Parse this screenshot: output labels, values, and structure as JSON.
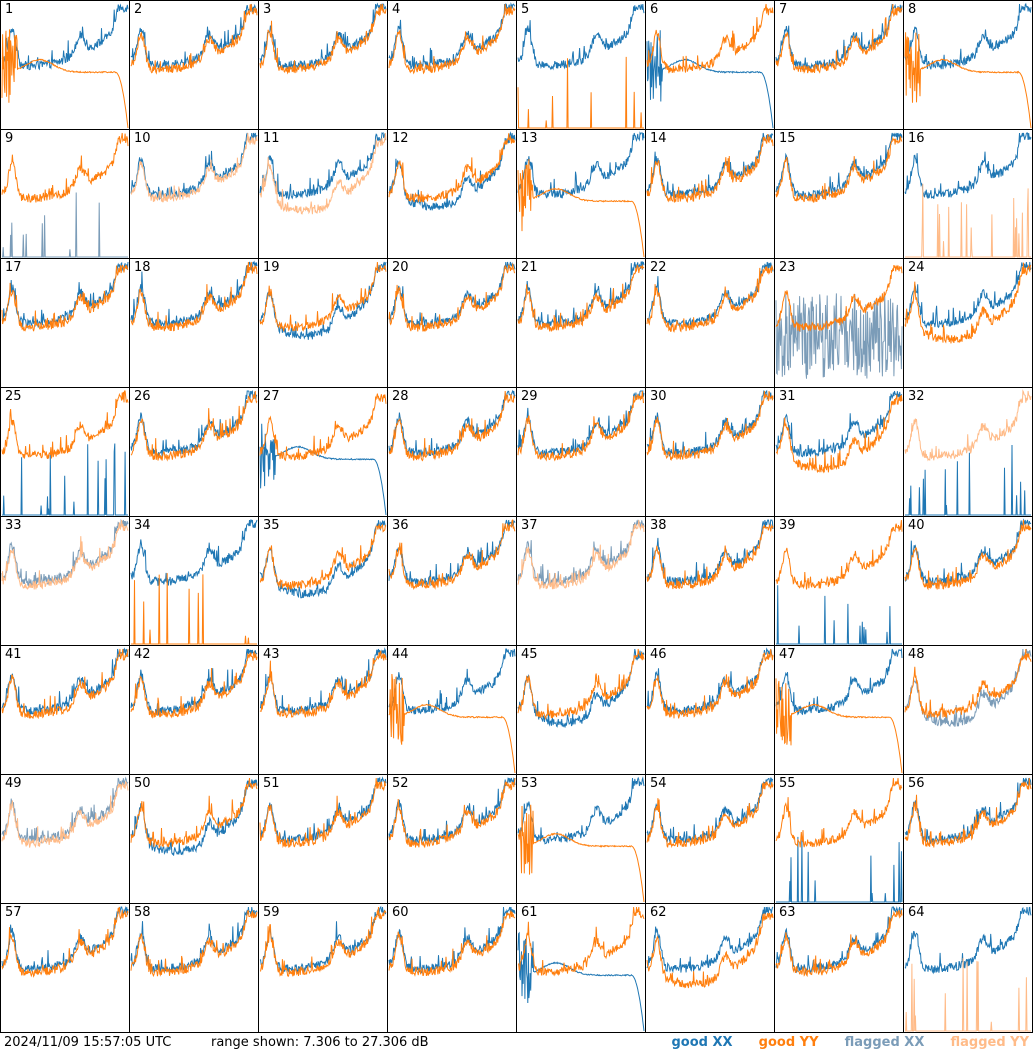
{
  "chart_data": {
    "type": "line",
    "grid": "8x8",
    "db_range": [
      7.306,
      27.306
    ],
    "colors": {
      "good_xx": "#1f77b4",
      "good_yy": "#ff7f0e",
      "flagged_xx": "#7b9cb8",
      "flagged_yy": "#ffbb88"
    },
    "panels": [
      {
        "n": "1",
        "xx": "good",
        "yy": "good",
        "xx_shape": "normal",
        "yy_shape": "dropout"
      },
      {
        "n": "2",
        "xx": "good",
        "yy": "good",
        "xx_shape": "normal",
        "yy_shape": "normal"
      },
      {
        "n": "3",
        "xx": "good",
        "yy": "good",
        "xx_shape": "normal",
        "yy_shape": "normal"
      },
      {
        "n": "4",
        "xx": "good",
        "yy": "good",
        "xx_shape": "normal",
        "yy_shape": "normal"
      },
      {
        "n": "5",
        "xx": "good",
        "yy": "good",
        "xx_shape": "normal",
        "yy_shape": "spikes"
      },
      {
        "n": "6",
        "xx": "good",
        "yy": "good",
        "xx_shape": "dropout",
        "yy_shape": "normal"
      },
      {
        "n": "7",
        "xx": "good",
        "yy": "good",
        "xx_shape": "normal",
        "yy_shape": "normal"
      },
      {
        "n": "8",
        "xx": "good",
        "yy": "good",
        "xx_shape": "normal",
        "yy_shape": "dropout"
      },
      {
        "n": "9",
        "xx": "flagged",
        "yy": "good",
        "xx_shape": "spikes",
        "yy_shape": "normal"
      },
      {
        "n": "10",
        "xx": "good",
        "yy": "flagged",
        "xx_shape": "normal",
        "yy_shape": "normal"
      },
      {
        "n": "11",
        "xx": "good",
        "yy": "flagged",
        "xx_shape": "normal",
        "yy_shape": "low"
      },
      {
        "n": "12",
        "xx": "good",
        "yy": "good",
        "xx_shape": "low",
        "yy_shape": "normal"
      },
      {
        "n": "13",
        "xx": "good",
        "yy": "good",
        "xx_shape": "normal",
        "yy_shape": "dropout"
      },
      {
        "n": "14",
        "xx": "good",
        "yy": "good",
        "xx_shape": "normal",
        "yy_shape": "normal"
      },
      {
        "n": "15",
        "xx": "good",
        "yy": "good",
        "xx_shape": "normal",
        "yy_shape": "normal"
      },
      {
        "n": "16",
        "xx": "good",
        "yy": "flagged",
        "xx_shape": "normal",
        "yy_shape": "spikes"
      },
      {
        "n": "17",
        "xx": "good",
        "yy": "good",
        "xx_shape": "normal",
        "yy_shape": "normal"
      },
      {
        "n": "18",
        "xx": "good",
        "yy": "good",
        "xx_shape": "normal",
        "yy_shape": "normal"
      },
      {
        "n": "19",
        "xx": "good",
        "yy": "good",
        "xx_shape": "low",
        "yy_shape": "normal"
      },
      {
        "n": "20",
        "xx": "good",
        "yy": "good",
        "xx_shape": "normal",
        "yy_shape": "normal"
      },
      {
        "n": "21",
        "xx": "good",
        "yy": "good",
        "xx_shape": "normal",
        "yy_shape": "normal"
      },
      {
        "n": "22",
        "xx": "good",
        "yy": "good",
        "xx_shape": "normal",
        "yy_shape": "normal"
      },
      {
        "n": "23",
        "xx": "flagged",
        "yy": "good",
        "xx_shape": "noisy",
        "yy_shape": "normal"
      },
      {
        "n": "24",
        "xx": "good",
        "yy": "good",
        "xx_shape": "normal",
        "yy_shape": "low"
      },
      {
        "n": "25",
        "xx": "good",
        "yy": "good",
        "xx_shape": "spikes",
        "yy_shape": "normal"
      },
      {
        "n": "26",
        "xx": "good",
        "yy": "good",
        "xx_shape": "normal",
        "yy_shape": "normal"
      },
      {
        "n": "27",
        "xx": "good",
        "yy": "good",
        "xx_shape": "dropout",
        "yy_shape": "normal"
      },
      {
        "n": "28",
        "xx": "good",
        "yy": "good",
        "xx_shape": "normal",
        "yy_shape": "normal"
      },
      {
        "n": "29",
        "xx": "good",
        "yy": "good",
        "xx_shape": "normal",
        "yy_shape": "normal"
      },
      {
        "n": "30",
        "xx": "good",
        "yy": "good",
        "xx_shape": "normal",
        "yy_shape": "normal"
      },
      {
        "n": "31",
        "xx": "good",
        "yy": "good",
        "xx_shape": "normal",
        "yy_shape": "low"
      },
      {
        "n": "32",
        "xx": "good",
        "yy": "flagged",
        "xx_shape": "spikes",
        "yy_shape": "normal"
      },
      {
        "n": "33",
        "xx": "flagged",
        "yy": "flagged",
        "xx_shape": "normal",
        "yy_shape": "normal"
      },
      {
        "n": "34",
        "xx": "good",
        "yy": "good",
        "xx_shape": "normal",
        "yy_shape": "spikes"
      },
      {
        "n": "35",
        "xx": "good",
        "yy": "good",
        "xx_shape": "low",
        "yy_shape": "normal"
      },
      {
        "n": "36",
        "xx": "good",
        "yy": "good",
        "xx_shape": "normal",
        "yy_shape": "normal"
      },
      {
        "n": "37",
        "xx": "flagged",
        "yy": "flagged",
        "xx_shape": "normal",
        "yy_shape": "normal"
      },
      {
        "n": "38",
        "xx": "good",
        "yy": "good",
        "xx_shape": "normal",
        "yy_shape": "normal"
      },
      {
        "n": "39",
        "xx": "good",
        "yy": "good",
        "xx_shape": "spikes",
        "yy_shape": "normal"
      },
      {
        "n": "40",
        "xx": "good",
        "yy": "good",
        "xx_shape": "normal",
        "yy_shape": "normal"
      },
      {
        "n": "41",
        "xx": "good",
        "yy": "good",
        "xx_shape": "normal",
        "yy_shape": "normal"
      },
      {
        "n": "42",
        "xx": "good",
        "yy": "good",
        "xx_shape": "normal",
        "yy_shape": "normal"
      },
      {
        "n": "43",
        "xx": "good",
        "yy": "good",
        "xx_shape": "normal",
        "yy_shape": "normal"
      },
      {
        "n": "44",
        "xx": "good",
        "yy": "good",
        "xx_shape": "normal",
        "yy_shape": "dropout"
      },
      {
        "n": "45",
        "xx": "good",
        "yy": "good",
        "xx_shape": "low",
        "yy_shape": "normal"
      },
      {
        "n": "46",
        "xx": "good",
        "yy": "good",
        "xx_shape": "normal",
        "yy_shape": "normal"
      },
      {
        "n": "47",
        "xx": "good",
        "yy": "good",
        "xx_shape": "normal",
        "yy_shape": "dropout"
      },
      {
        "n": "48",
        "xx": "flagged",
        "yy": "good",
        "xx_shape": "low",
        "yy_shape": "normal"
      },
      {
        "n": "49",
        "xx": "flagged",
        "yy": "flagged",
        "xx_shape": "normal",
        "yy_shape": "normal"
      },
      {
        "n": "50",
        "xx": "good",
        "yy": "good",
        "xx_shape": "low",
        "yy_shape": "normal"
      },
      {
        "n": "51",
        "xx": "good",
        "yy": "good",
        "xx_shape": "normal",
        "yy_shape": "normal"
      },
      {
        "n": "52",
        "xx": "good",
        "yy": "good",
        "xx_shape": "normal",
        "yy_shape": "normal"
      },
      {
        "n": "53",
        "xx": "good",
        "yy": "good",
        "xx_shape": "normal",
        "yy_shape": "dropout"
      },
      {
        "n": "54",
        "xx": "good",
        "yy": "good",
        "xx_shape": "normal",
        "yy_shape": "normal"
      },
      {
        "n": "55",
        "xx": "good",
        "yy": "good",
        "xx_shape": "spikes",
        "yy_shape": "normal"
      },
      {
        "n": "56",
        "xx": "good",
        "yy": "good",
        "xx_shape": "normal",
        "yy_shape": "normal"
      },
      {
        "n": "57",
        "xx": "good",
        "yy": "good",
        "xx_shape": "normal",
        "yy_shape": "normal"
      },
      {
        "n": "58",
        "xx": "good",
        "yy": "good",
        "xx_shape": "normal",
        "yy_shape": "normal"
      },
      {
        "n": "59",
        "xx": "good",
        "yy": "good",
        "xx_shape": "normal",
        "yy_shape": "normal"
      },
      {
        "n": "60",
        "xx": "good",
        "yy": "good",
        "xx_shape": "normal",
        "yy_shape": "normal"
      },
      {
        "n": "61",
        "xx": "good",
        "yy": "good",
        "xx_shape": "dropout",
        "yy_shape": "normal"
      },
      {
        "n": "62",
        "xx": "good",
        "yy": "good",
        "xx_shape": "normal",
        "yy_shape": "low"
      },
      {
        "n": "63",
        "xx": "good",
        "yy": "good",
        "xx_shape": "normal",
        "yy_shape": "normal"
      },
      {
        "n": "64",
        "xx": "good",
        "yy": "flagged",
        "xx_shape": "normal",
        "yy_shape": "spikes"
      }
    ]
  },
  "footer": {
    "timestamp": "2024/11/09 15:57:05 UTC",
    "range_text": "range shown: 7.306 to 27.306 dB"
  },
  "legend": [
    {
      "label": "good XX",
      "color": "#1f77b4"
    },
    {
      "label": "good YY",
      "color": "#ff7f0e"
    },
    {
      "label": "flagged XX",
      "color": "#7b9cb8"
    },
    {
      "label": "flagged YY",
      "color": "#ffbb88"
    }
  ]
}
